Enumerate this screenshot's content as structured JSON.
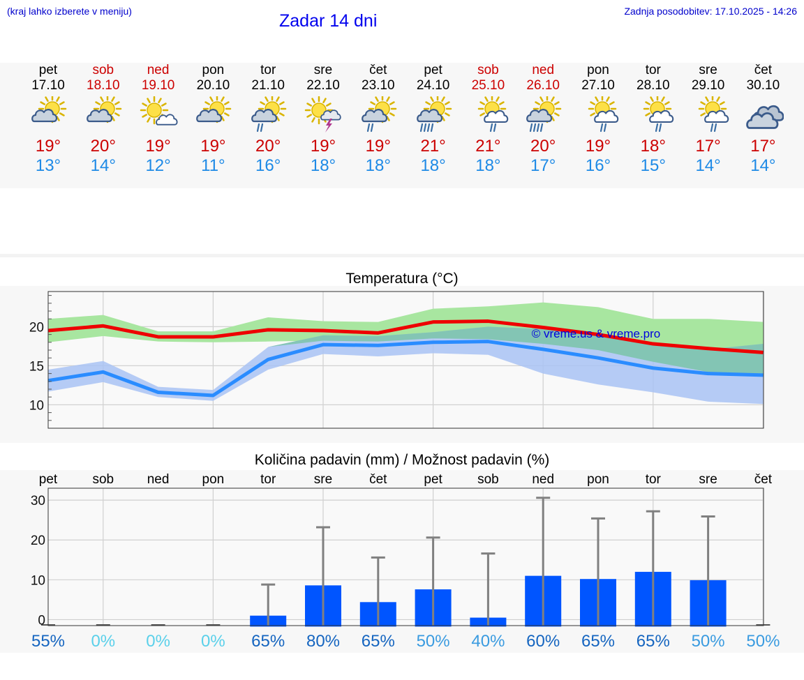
{
  "header": {
    "location_hint": "(kraj lahko izberete v meniju)",
    "title": "Zadar 14 dni",
    "updated": "Zadnja posodobitev: 17.10.2025 - 14:26"
  },
  "days": [
    {
      "name": "pet",
      "date": "17.10",
      "weekend": false,
      "icon": "sun-cloud-icon",
      "tmax": "19°",
      "tmin": "13°"
    },
    {
      "name": "sob",
      "date": "18.10",
      "weekend": true,
      "icon": "sun-cloud-icon",
      "tmax": "20°",
      "tmin": "14°"
    },
    {
      "name": "ned",
      "date": "19.10",
      "weekend": true,
      "icon": "sun-small-cloud-icon",
      "tmax": "19°",
      "tmin": "12°"
    },
    {
      "name": "pon",
      "date": "20.10",
      "weekend": false,
      "icon": "sun-cloud-icon",
      "tmax": "19°",
      "tmin": "11°"
    },
    {
      "name": "tor",
      "date": "21.10",
      "weekend": false,
      "icon": "sun-cloud-rain-icon",
      "tmax": "20°",
      "tmin": "16°"
    },
    {
      "name": "sre",
      "date": "22.10",
      "weekend": false,
      "icon": "sun-thunder-icon",
      "tmax": "19°",
      "tmin": "18°"
    },
    {
      "name": "čet",
      "date": "23.10",
      "weekend": false,
      "icon": "sun-cloud-rain-icon",
      "tmax": "19°",
      "tmin": "18°"
    },
    {
      "name": "pet",
      "date": "24.10",
      "weekend": false,
      "icon": "sun-cloud-heavy-rain-icon",
      "tmax": "21°",
      "tmin": "18°"
    },
    {
      "name": "sob",
      "date": "25.10",
      "weekend": true,
      "icon": "sun-white-cloud-rain-icon",
      "tmax": "21°",
      "tmin": "18°"
    },
    {
      "name": "ned",
      "date": "26.10",
      "weekend": true,
      "icon": "sun-cloud-heavy-rain-icon",
      "tmax": "20°",
      "tmin": "17°"
    },
    {
      "name": "pon",
      "date": "27.10",
      "weekend": false,
      "icon": "sun-white-cloud-rain-icon",
      "tmax": "19°",
      "tmin": "16°"
    },
    {
      "name": "tor",
      "date": "28.10",
      "weekend": false,
      "icon": "sun-white-cloud-rain-icon",
      "tmax": "18°",
      "tmin": "15°"
    },
    {
      "name": "sre",
      "date": "29.10",
      "weekend": false,
      "icon": "sun-white-cloud-rain-icon",
      "tmax": "17°",
      "tmin": "14°"
    },
    {
      "name": "čet",
      "date": "30.10",
      "weekend": false,
      "icon": "clouds-icon",
      "tmax": "17°",
      "tmin": "14°"
    }
  ],
  "colors": {
    "max_line": "#ee0000",
    "max_band": "#a8e6a0",
    "min_line": "#2a8cff",
    "min_band": "#a9c3f5",
    "overlap_band": "#7cc4aa",
    "bar": "#0055ff",
    "whisker": "#808080",
    "weekend": "#cc0000",
    "prob_high": "#1565c0",
    "prob_mid": "#3a9be0",
    "prob_low": "#5ad0ea"
  },
  "chart_data": [
    {
      "type": "line",
      "title": "Temperatura (°C)",
      "watermark": "© vreme.us & vreme.pro",
      "x": [
        "17.10",
        "18.10",
        "19.10",
        "20.10",
        "21.10",
        "22.10",
        "23.10",
        "24.10",
        "25.10",
        "26.10",
        "27.10",
        "28.10",
        "29.10",
        "30.10"
      ],
      "ylim": [
        7,
        24.5
      ],
      "yticks": [
        10,
        15,
        20
      ],
      "series": [
        {
          "role": "max",
          "values": [
            19.5,
            20.1,
            18.7,
            18.7,
            19.6,
            19.5,
            19.2,
            20.6,
            20.7,
            19.9,
            19.0,
            17.8,
            17.2,
            16.7
          ],
          "band_low": [
            18.0,
            18.8,
            18.1,
            18.0,
            18.1,
            18.2,
            18.1,
            18.5,
            18.4,
            17.8,
            17.0,
            15.5,
            14.2,
            13.7
          ],
          "band_high": [
            21.0,
            21.5,
            19.4,
            19.4,
            21.2,
            20.7,
            20.6,
            22.3,
            22.6,
            23.1,
            22.5,
            21.0,
            21.0,
            20.6
          ]
        },
        {
          "role": "min",
          "values": [
            13.1,
            14.2,
            11.6,
            11.2,
            15.8,
            17.7,
            17.6,
            18.0,
            18.1,
            17.1,
            16.0,
            14.7,
            14.0,
            13.8
          ],
          "band_low": [
            11.7,
            12.9,
            11.0,
            10.5,
            14.5,
            16.5,
            16.2,
            16.6,
            16.4,
            14.0,
            12.6,
            11.6,
            10.4,
            10.1
          ],
          "band_high": [
            14.5,
            15.6,
            12.3,
            11.9,
            17.4,
            18.9,
            18.8,
            19.3,
            20.0,
            19.7,
            19.0,
            17.8,
            17.1,
            17.8
          ]
        }
      ]
    },
    {
      "type": "bar",
      "title": "Količina padavin (mm) / Možnost padavin (%)",
      "categories": [
        "pet",
        "sob",
        "ned",
        "pon",
        "tor",
        "sre",
        "čet",
        "pet",
        "sob",
        "ned",
        "pon",
        "tor",
        "sre",
        "čet"
      ],
      "values": [
        0,
        0,
        0,
        0,
        1,
        8.6,
        4.4,
        7.6,
        0.5,
        11,
        10.2,
        12,
        9.9,
        0
      ],
      "whisker_max": [
        0,
        0,
        0,
        0,
        8.8,
        23.2,
        15.6,
        20.6,
        16.6,
        30.6,
        25.4,
        27.2,
        25.9,
        0
      ],
      "probability": [
        "55%",
        "0%",
        "0%",
        "0%",
        "65%",
        "80%",
        "65%",
        "50%",
        "40%",
        "60%",
        "65%",
        "65%",
        "50%",
        "50%"
      ],
      "ylim": [
        -1.5,
        33
      ],
      "yticks": [
        0,
        10,
        20,
        30
      ]
    }
  ]
}
